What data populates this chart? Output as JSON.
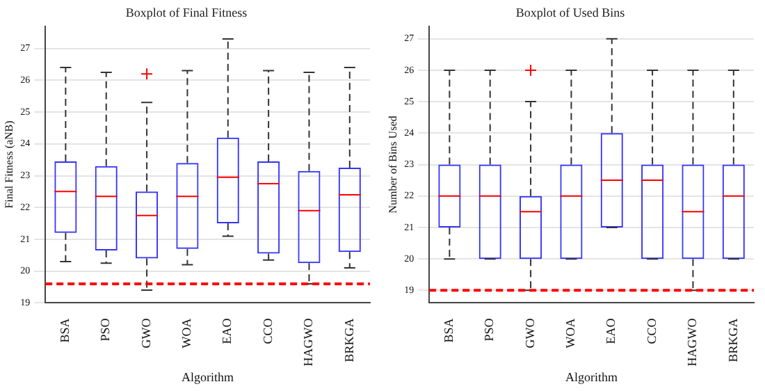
{
  "chart_data": [
    {
      "type": "box",
      "title": "Boxplot of Final Fitness",
      "xlabel": "Algorithm",
      "ylabel": "Final Fitness (aNB)",
      "categories": [
        "BSA",
        "PSO",
        "GWO",
        "WOA",
        "EAO",
        "CCO",
        "HAGWO",
        "BRKGA"
      ],
      "ylim": [
        19,
        27.7
      ],
      "yticks": [
        19,
        20,
        21,
        22,
        23,
        24,
        25,
        26,
        27
      ],
      "grid": "y",
      "legend": false,
      "line_style": "dashed",
      "series": [
        {
          "color": "#3333ff",
          "boxes": [
            {
              "low": 20.3,
              "q1": 21.2,
              "median": 22.5,
              "q3": 23.45,
              "high": 26.4
            },
            {
              "low": 20.25,
              "q1": 20.65,
              "median": 22.35,
              "q3": 23.3,
              "high": 26.25
            },
            {
              "low": 19.4,
              "q1": 20.4,
              "median": 21.75,
              "q3": 22.5,
              "high": 25.3,
              "outliers": [
                26.2
              ]
            },
            {
              "low": 20.2,
              "q1": 20.7,
              "median": 22.35,
              "q3": 23.4,
              "high": 26.3
            },
            {
              "low": 21.1,
              "q1": 21.5,
              "median": 22.95,
              "q3": 24.2,
              "high": 27.3
            },
            {
              "low": 20.35,
              "q1": 20.55,
              "median": 22.75,
              "q3": 23.45,
              "high": 26.3
            },
            {
              "low": 19.6,
              "q1": 20.25,
              "median": 21.9,
              "q3": 23.15,
              "high": 26.25
            },
            {
              "low": 20.1,
              "q1": 20.6,
              "median": 22.4,
              "q3": 23.25,
              "high": 26.4
            }
          ]
        }
      ],
      "ref_lines": [
        {
          "axis": "y",
          "value": 19.6,
          "color": "#ff0000",
          "line_style": "dashed"
        }
      ]
    },
    {
      "type": "box",
      "title": "Boxplot of Used Bins",
      "xlabel": "Algorithm",
      "ylabel": "Number of Bins Used",
      "categories": [
        "BSA",
        "PSO",
        "GWO",
        "WOA",
        "EAO",
        "CCO",
        "HAGWO",
        "BRKGA"
      ],
      "ylim": [
        18.6,
        27.4
      ],
      "yticks": [
        19,
        20,
        21,
        22,
        23,
        24,
        25,
        26,
        27
      ],
      "grid": "y",
      "legend": false,
      "line_style": "dashed",
      "series": [
        {
          "color": "#3333ff",
          "boxes": [
            {
              "low": 20,
              "q1": 21,
              "median": 22,
              "q3": 23,
              "high": 26
            },
            {
              "low": 20,
              "q1": 20,
              "median": 22,
              "q3": 23,
              "high": 26
            },
            {
              "low": 19,
              "q1": 20,
              "median": 21.5,
              "q3": 22,
              "high": 25,
              "outliers": [
                26
              ]
            },
            {
              "low": 20,
              "q1": 20,
              "median": 22,
              "q3": 23,
              "high": 26
            },
            {
              "low": 21,
              "q1": 21,
              "median": 22.5,
              "q3": 24,
              "high": 27
            },
            {
              "low": 20,
              "q1": 20,
              "median": 22.5,
              "q3": 23,
              "high": 26
            },
            {
              "low": 19,
              "q1": 20,
              "median": 21.5,
              "q3": 23,
              "high": 26
            },
            {
              "low": 20,
              "q1": 20,
              "median": 22,
              "q3": 23,
              "high": 26
            }
          ]
        }
      ],
      "ref_lines": [
        {
          "axis": "y",
          "value": 19,
          "color": "#ff0000",
          "line_style": "dashed"
        }
      ]
    }
  ]
}
